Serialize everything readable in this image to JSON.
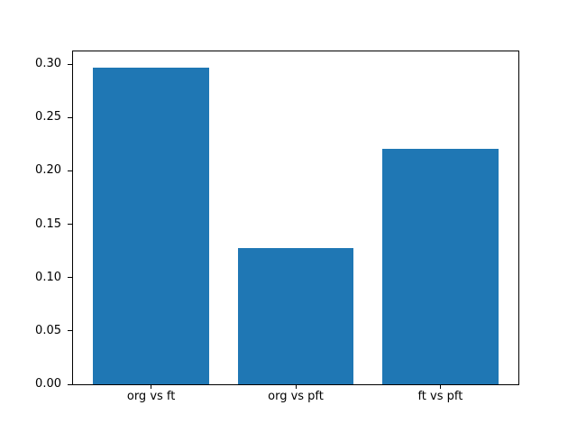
{
  "figure": {
    "background_color": "#ffffff",
    "spine_color": "#000000",
    "text_color": "#000000"
  },
  "chart_data": {
    "type": "bar",
    "categories": [
      "org vs ft",
      "org vs pft",
      "ft vs pft"
    ],
    "values": [
      0.297,
      0.128,
      0.221
    ],
    "bar_color": "#1f77b4",
    "bar_width": 0.8,
    "xlim": [
      -0.54,
      2.54
    ],
    "ylim": [
      0,
      0.312
    ],
    "yticks": [
      0.0,
      0.05,
      0.1,
      0.15,
      0.2,
      0.25,
      0.3
    ],
    "ytick_labels": [
      "0.00",
      "0.05",
      "0.10",
      "0.15",
      "0.20",
      "0.25",
      "0.30"
    ],
    "grid": false,
    "legend": false
  }
}
